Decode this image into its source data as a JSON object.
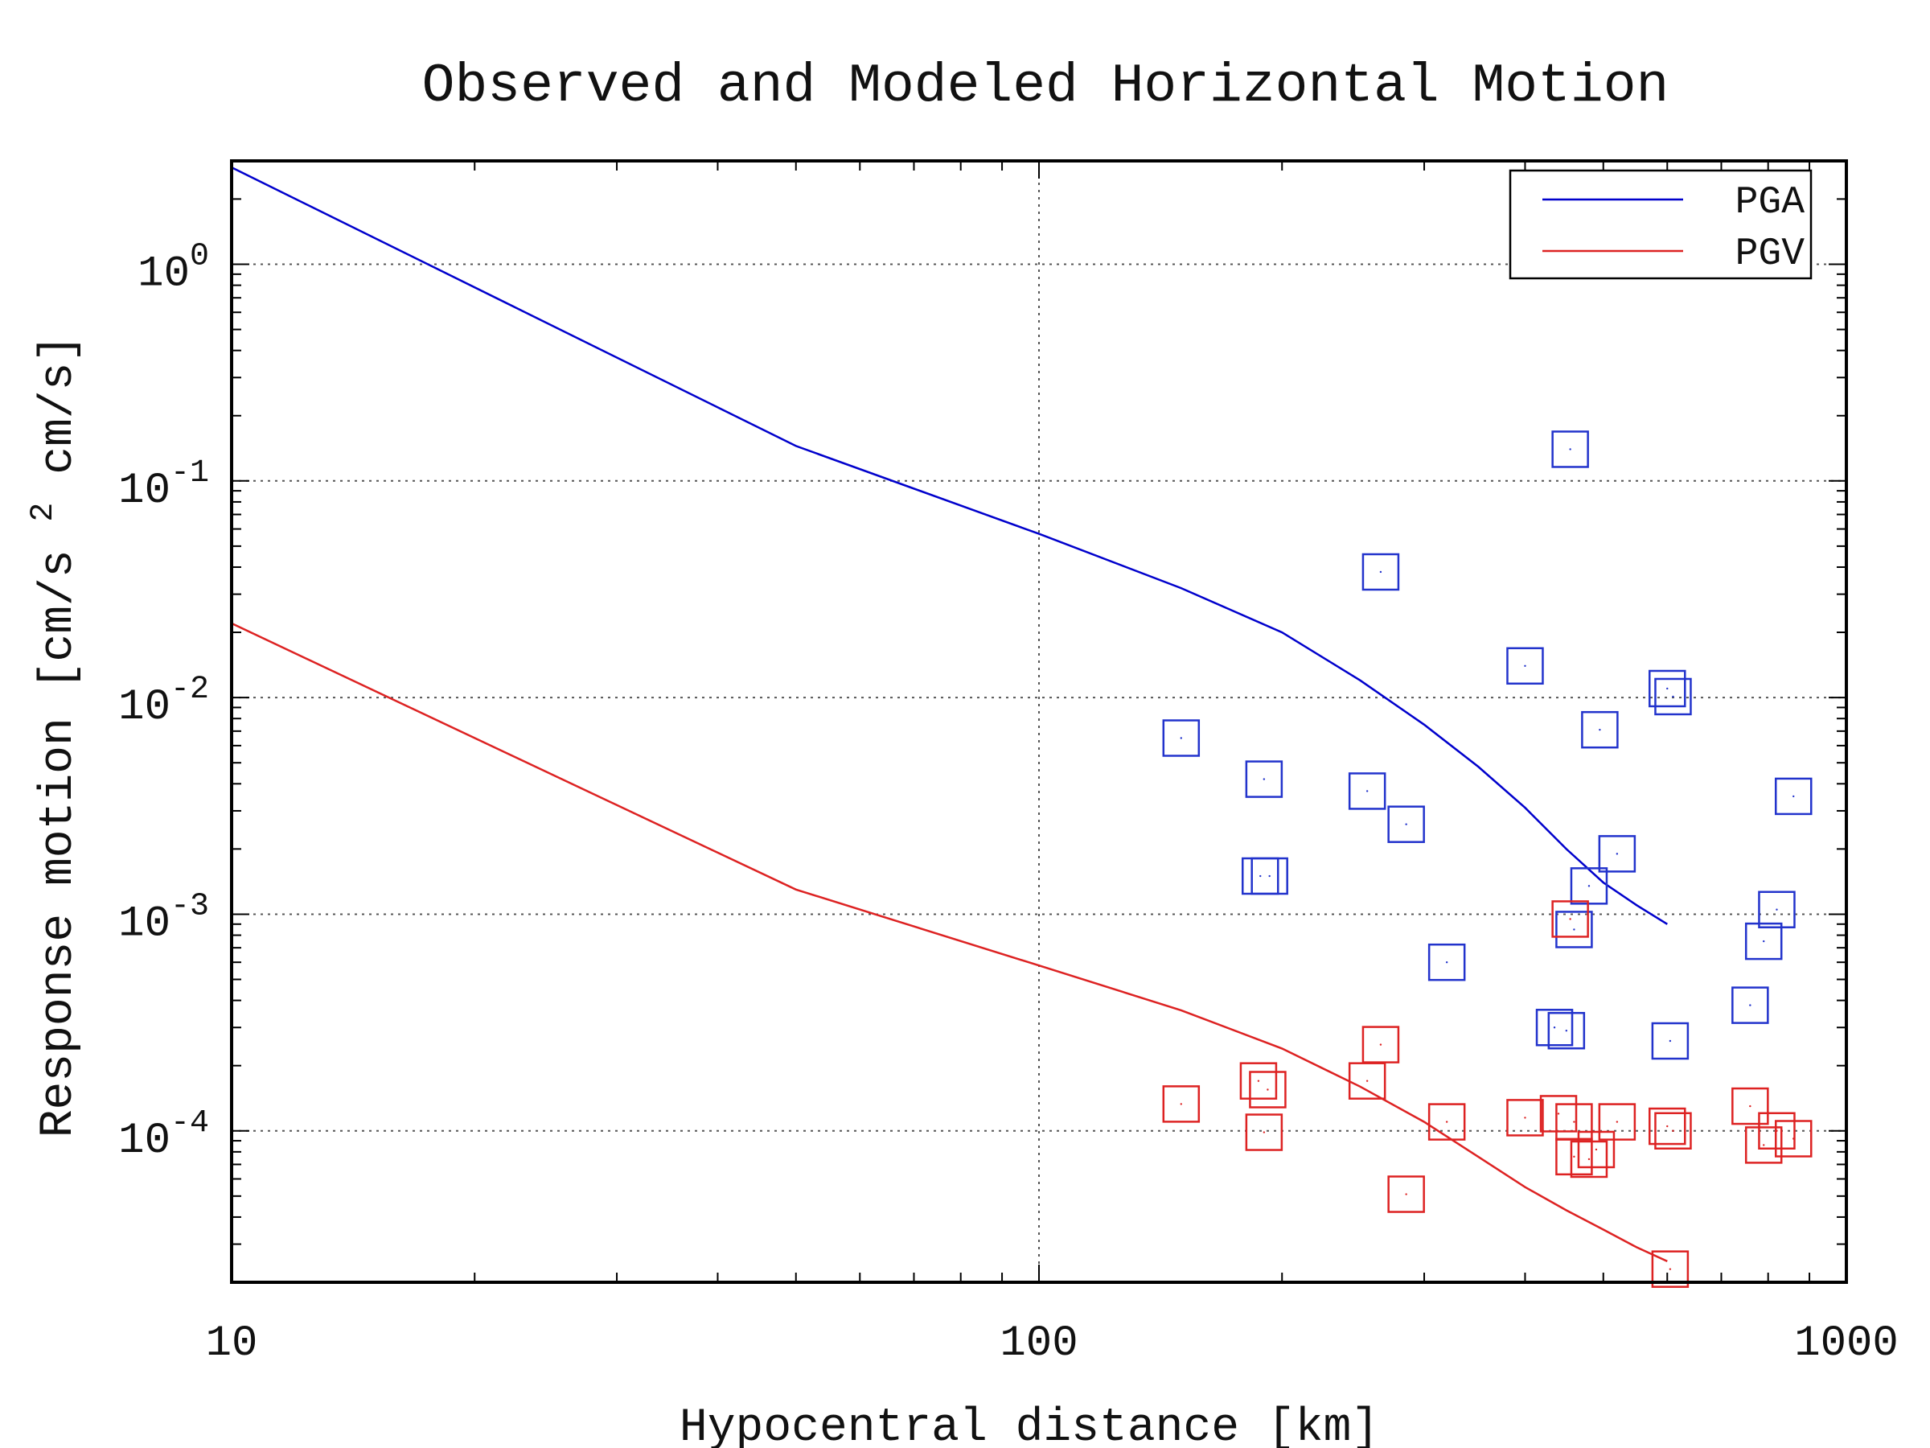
{
  "chart_data": {
    "type": "line",
    "title": "Observed and Modeled Horizontal Motion",
    "xlabel": "Hypocentral distance [km]",
    "ylabel": {
      "prefix": "Response motion [cm/s",
      "exponent": "2",
      "suffix": " cm/s]"
    },
    "x_scale": "log",
    "y_scale": "log",
    "xlim": [
      10,
      1000
    ],
    "ylim": [
      2e-05,
      3
    ],
    "x_ticks": [
      {
        "value": 10,
        "label": "10"
      },
      {
        "value": 100,
        "label": "100"
      },
      {
        "value": 1000,
        "label": "1000"
      }
    ],
    "y_ticks": [
      {
        "value": 1,
        "base": "10",
        "exponent": "0"
      },
      {
        "value": 0.1,
        "base": "10",
        "exponent": "-1"
      },
      {
        "value": 0.01,
        "base": "10",
        "exponent": "-2"
      },
      {
        "value": 0.001,
        "base": "10",
        "exponent": "-3"
      },
      {
        "value": 0.0001,
        "base": "10",
        "exponent": "-4"
      }
    ],
    "grid": true,
    "legend": {
      "position": "top-right",
      "entries": [
        {
          "label": "PGA",
          "color": "#0000cc"
        },
        {
          "label": "PGV",
          "color": "#dd2222"
        }
      ]
    },
    "model_series": [
      {
        "name": "PGA",
        "color": "#0000cc",
        "x": [
          10,
          50,
          100,
          150,
          200,
          250,
          300,
          350,
          400,
          450,
          500,
          550,
          600
        ],
        "y": [
          2.8,
          0.145,
          0.057,
          0.032,
          0.02,
          0.012,
          0.0075,
          0.0048,
          0.0031,
          0.002,
          0.0014,
          0.0011,
          0.0009
        ]
      },
      {
        "name": "PGV",
        "color": "#dd2222",
        "x": [
          10,
          50,
          100,
          150,
          200,
          250,
          300,
          350,
          400,
          450,
          500,
          550,
          600
        ],
        "y": [
          0.022,
          0.0013,
          0.00058,
          0.00036,
          0.00024,
          0.00016,
          0.00011,
          7.6e-05,
          5.5e-05,
          4.3e-05,
          3.5e-05,
          2.9e-05,
          2.5e-05
        ]
      }
    ],
    "observed_series": [
      {
        "name": "PGA observed",
        "color": "#2233cc",
        "points": [
          [
            150,
            0.0065
          ],
          [
            190,
            0.0042
          ],
          [
            188,
            0.0015
          ],
          [
            193,
            0.0015
          ],
          [
            255,
            0.0037
          ],
          [
            265,
            0.038
          ],
          [
            285,
            0.0026
          ],
          [
            320,
            0.0006
          ],
          [
            400,
            0.014
          ],
          [
            435,
            0.0003
          ],
          [
            450,
            0.00029
          ],
          [
            455,
            0.14
          ],
          [
            460,
            0.00085
          ],
          [
            480,
            0.00135
          ],
          [
            495,
            0.0071
          ],
          [
            520,
            0.0019
          ],
          [
            600,
            0.011
          ],
          [
            610,
            0.0101
          ],
          [
            605,
            0.00026
          ],
          [
            760,
            0.00038
          ],
          [
            790,
            0.00075
          ],
          [
            820,
            0.00105
          ],
          [
            860,
            0.0035
          ]
        ]
      },
      {
        "name": "PGV observed",
        "color": "#dd2222",
        "points": [
          [
            150,
            0.000133
          ],
          [
            187,
            0.00017
          ],
          [
            192,
            0.000155
          ],
          [
            190,
            9.85e-05
          ],
          [
            255,
            0.00017
          ],
          [
            265,
            0.00025
          ],
          [
            285,
            5.1e-05
          ],
          [
            320,
            0.00011
          ],
          [
            400,
            0.000115
          ],
          [
            440,
            0.00012
          ],
          [
            455,
            0.00095
          ],
          [
            460,
            7.6e-05
          ],
          [
            460,
            0.00011
          ],
          [
            480,
            7.4e-05
          ],
          [
            490,
            8.2e-05
          ],
          [
            520,
            0.00011
          ],
          [
            600,
            0.000105
          ],
          [
            605,
            2.3e-05
          ],
          [
            610,
            0.0001
          ],
          [
            760,
            0.00013
          ],
          [
            790,
            8.6e-05
          ],
          [
            820,
            0.0001
          ],
          [
            860,
            9.2e-05
          ]
        ]
      }
    ]
  }
}
